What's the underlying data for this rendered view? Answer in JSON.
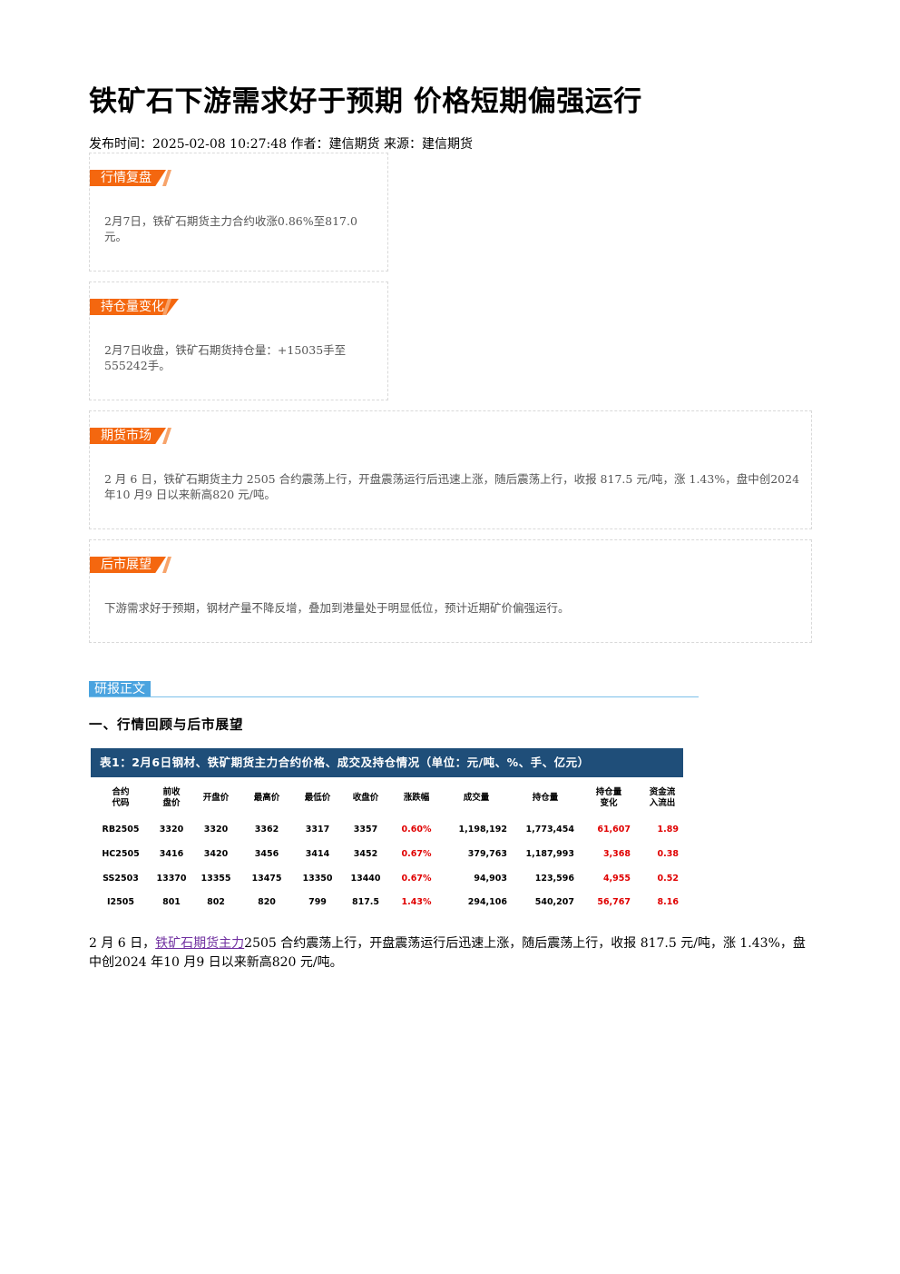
{
  "title": "铁矿石下游需求好于预期 价格短期偏强运行",
  "meta": "发布时间：2025-02-08 10:27:48 作者：建信期货 来源：建信期货",
  "sections": [
    {
      "tag": "行情复盘",
      "text": "2月7日，铁矿石期货主力合约收涨0.86%至817.0元。"
    },
    {
      "tag": "持仓量变化",
      "text": "2月7日收盘，铁矿石期货持仓量：+15035手至555242手。"
    },
    {
      "tag": "期货市场",
      "text": "2 月 6 日，铁矿石期货主力 2505 合约震荡上行，开盘震荡运行后迅速上涨，随后震荡上行，收报 817.5 元/吨，涨 1.43%，盘中创2024 年10 月9 日以来新高820 元/吨。"
    },
    {
      "tag": "后市展望",
      "text": "下游需求好于预期，钢材产量不降反增，叠加到港量处于明显低位，预计近期矿价偏强运行。"
    }
  ],
  "report_tag": "研报正文",
  "section_heading": "一、行情回顾与后市展望",
  "table": {
    "caption": "表1：2月6日钢材、铁矿期货主力合约价格、成交及持仓情况（单位：元/吨、%、手、亿元）",
    "headers": [
      [
        "合约",
        "代码"
      ],
      [
        "前收",
        "盘价"
      ],
      [
        "开盘价"
      ],
      [
        "最高价"
      ],
      [
        "最低价"
      ],
      [
        "收盘价"
      ],
      [
        "涨跌幅"
      ],
      [
        "成交量"
      ],
      [
        "持仓量"
      ],
      [
        "持仓量",
        "变化"
      ],
      [
        "资金流",
        "入流出"
      ]
    ],
    "rows": [
      [
        "RB2505",
        "3320",
        "3320",
        "3362",
        "3317",
        "3357",
        "0.60%",
        "1,198,192",
        "1,773,454",
        "61,607",
        "1.89"
      ],
      [
        "HC2505",
        "3416",
        "3420",
        "3456",
        "3414",
        "3452",
        "0.67%",
        "379,763",
        "1,187,993",
        "3,368",
        "0.38"
      ],
      [
        "SS2503",
        "13370",
        "13355",
        "13475",
        "13350",
        "13440",
        "0.67%",
        "94,903",
        "123,596",
        "4,955",
        "0.52"
      ],
      [
        "I2505",
        "801",
        "802",
        "820",
        "799",
        "817.5",
        "1.43%",
        "294,106",
        "540,207",
        "56,767",
        "8.16"
      ]
    ]
  },
  "paragraph": {
    "before": "2 月 6 日，",
    "link": "铁矿石期货主力",
    "after": "2505 合约震荡上行，开盘震荡运行后迅速上涨，随后震荡上行，收报 817.5 元/吨，涨 1.43%，盘中创2024 年10 月9 日以来新高820 元/吨。"
  }
}
